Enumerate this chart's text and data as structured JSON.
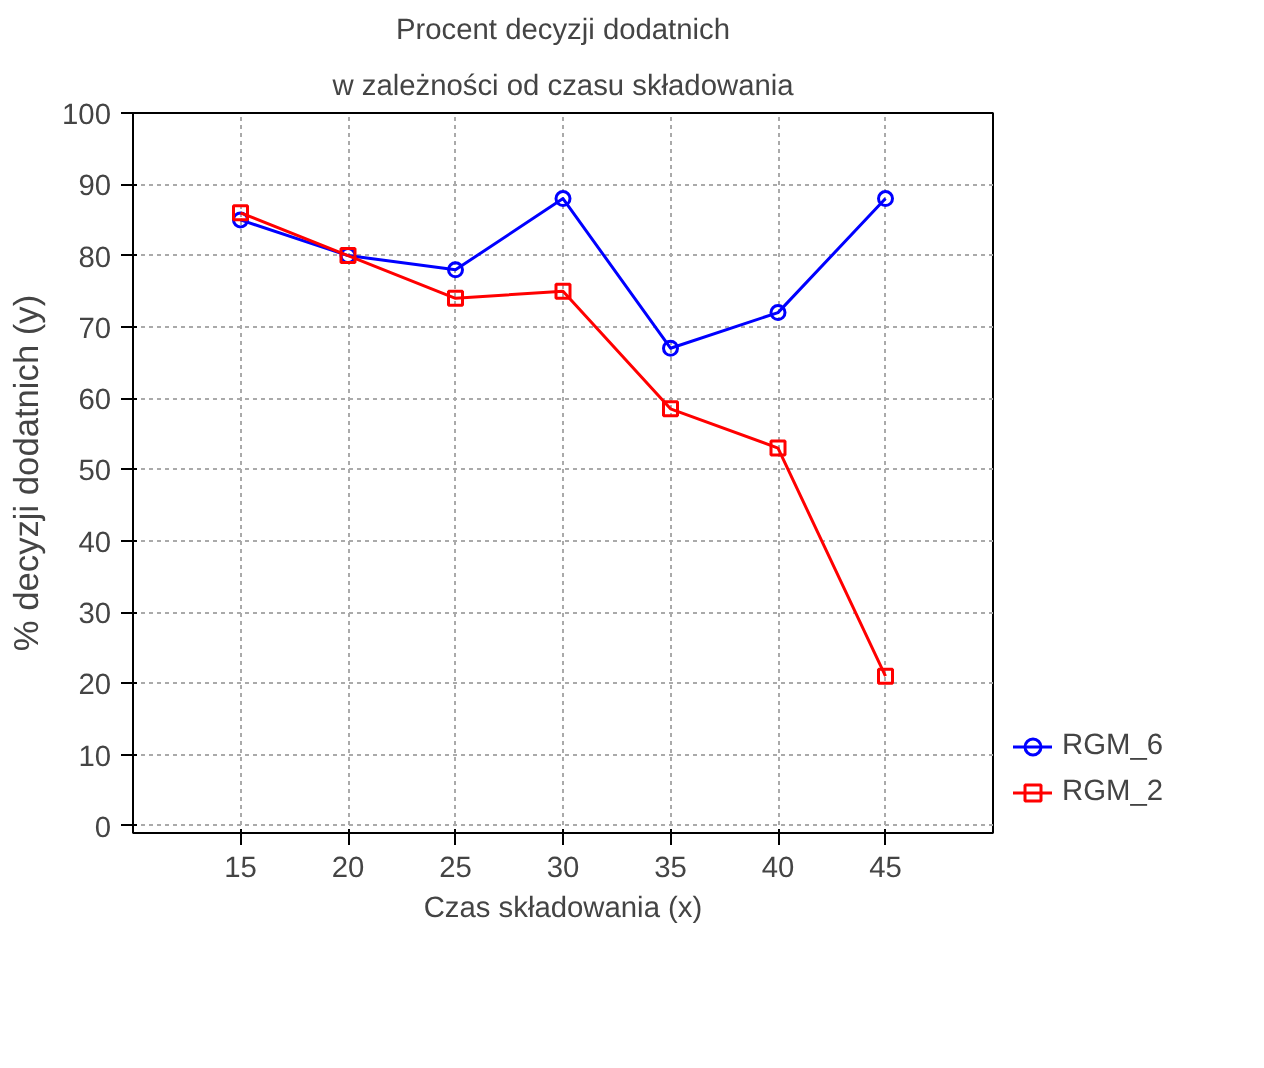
{
  "chart_data": {
    "type": "line",
    "title": "Procent decyzji dodatnich",
    "subtitle": "w zależności od czasu składowania",
    "xlabel": "Czas składowania (x)",
    "ylabel": "% decyzji dodatnich (y)",
    "x": [
      15,
      20,
      25,
      30,
      35,
      40,
      45
    ],
    "series": [
      {
        "name": "RGM_6",
        "color": "#0000ff",
        "marker": "circle",
        "values": [
          85,
          80,
          78,
          88,
          67,
          72,
          88
        ]
      },
      {
        "name": "RGM_2",
        "color": "#ff0000",
        "marker": "square",
        "values": [
          86,
          80,
          74,
          75,
          58.5,
          53,
          21
        ]
      }
    ],
    "xlim": [
      10,
      50
    ],
    "xticks": [
      15,
      20,
      25,
      30,
      35,
      40,
      45
    ],
    "ylim": [
      -1,
      100
    ],
    "yticks": [
      0,
      10,
      20,
      30,
      40,
      50,
      60,
      70,
      80,
      90,
      100
    ],
    "grid": true,
    "legend": "bottom right",
    "line_style": "solid"
  }
}
